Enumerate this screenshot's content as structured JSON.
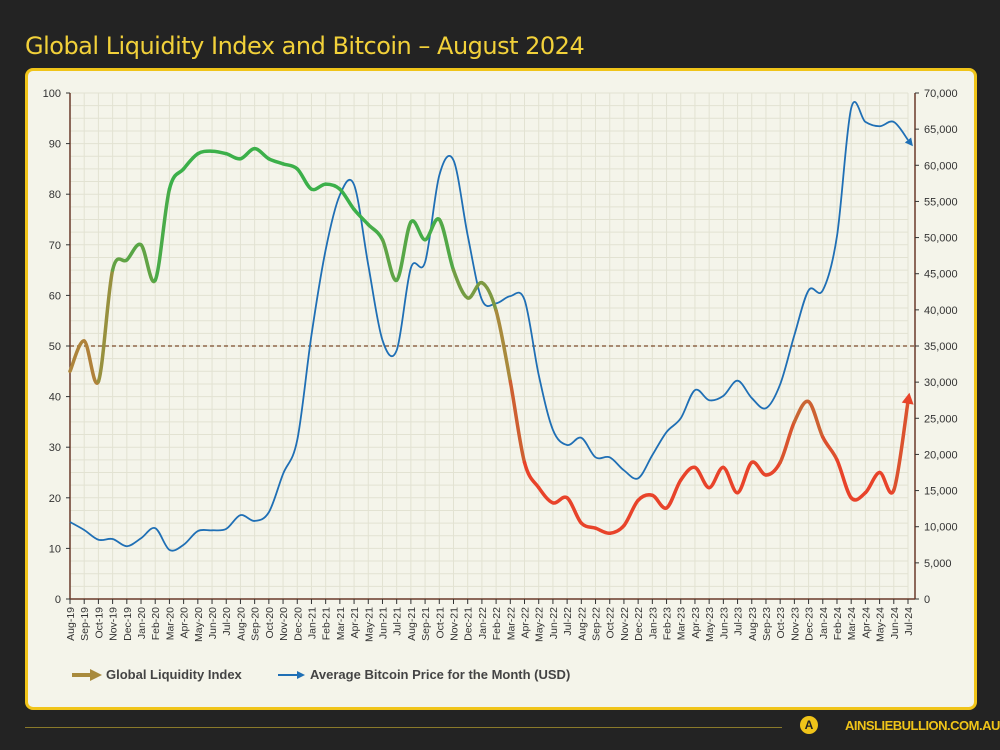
{
  "title": "Global Liquidity Index and Bitcoin – August 2024",
  "footer": {
    "site": "AINSLIEBULLION.COM.AU",
    "logo_letter": "A"
  },
  "chart_data": {
    "type": "line",
    "title": "Global Liquidity Index and Bitcoin – August 2024",
    "categories": [
      "Aug-19",
      "Sep-19",
      "Oct-19",
      "Nov-19",
      "Dec-19",
      "Jan-20",
      "Feb-20",
      "Mar-20",
      "Apr-20",
      "May-20",
      "Jun-20",
      "Jul-20",
      "Aug-20",
      "Sep-20",
      "Oct-20",
      "Nov-20",
      "Dec-20",
      "Jan-21",
      "Feb-21",
      "Mar-21",
      "Apr-21",
      "May-21",
      "Jun-21",
      "Jul-21",
      "Aug-21",
      "Sep-21",
      "Oct-21",
      "Nov-21",
      "Dec-21",
      "Jan-22",
      "Feb-22",
      "Mar-22",
      "Apr-22",
      "May-22",
      "Jun-22",
      "Jul-22",
      "Aug-22",
      "Sep-22",
      "Oct-22",
      "Nov-22",
      "Dec-22",
      "Jan-23",
      "Feb-23",
      "Mar-23",
      "Apr-23",
      "May-23",
      "Jun-23",
      "Jul-23",
      "Aug-23",
      "Sep-23",
      "Oct-23",
      "Nov-23",
      "Dec-23",
      "Jan-24",
      "Feb-24",
      "Mar-24",
      "Apr-24",
      "May-24",
      "Jun-24",
      "Jul-24"
    ],
    "series": [
      {
        "name": "Global Liquidity Index",
        "axis": "left",
        "color_high": "#3cb04a",
        "color_mid": "#a88a3c",
        "color_low": "#e8432a",
        "values": [
          45,
          51,
          43,
          65,
          67,
          70,
          63,
          81,
          85,
          88,
          88.5,
          88,
          87,
          89,
          87,
          86,
          85,
          81,
          82,
          81,
          77,
          74,
          71,
          63,
          74.5,
          71,
          75,
          65,
          59.5,
          62.5,
          57,
          43,
          27,
          22,
          19,
          20,
          15,
          14,
          13,
          14.5,
          19.5,
          20.5,
          18,
          23.5,
          26,
          22,
          26,
          21,
          27,
          24.5,
          27,
          35,
          39,
          32,
          27.5,
          20,
          21,
          25,
          21.5,
          39
        ]
      },
      {
        "name": "Average Bitcoin Price for the Month (USD)",
        "axis": "right",
        "color": "#1f6fb5",
        "values": [
          10650,
          9550,
          8200,
          8300,
          7300,
          8400,
          9800,
          6800,
          7500,
          9400,
          9500,
          9700,
          11600,
          10800,
          12000,
          17300,
          22000,
          36500,
          48300,
          55900,
          57300,
          46200,
          35800,
          34400,
          45800,
          46600,
          58600,
          60700,
          50300,
          41400,
          40900,
          41900,
          41400,
          31000,
          23400,
          21300,
          22300,
          19600,
          19600,
          17800,
          16700,
          19900,
          23100,
          25000,
          28900,
          27500,
          28100,
          30200,
          27800,
          26400,
          29700,
          36500,
          42700,
          42700,
          50200,
          67900,
          66000,
          65400,
          66000,
          63500
        ]
      }
    ],
    "y_left": {
      "range": [
        0,
        100
      ],
      "ticks": [
        0,
        10,
        20,
        30,
        40,
        50,
        60,
        70,
        80,
        90,
        100
      ]
    },
    "y_right": {
      "range": [
        0,
        70000
      ],
      "ticks": [
        "0",
        "5,000",
        "10,000",
        "15,000",
        "20,000",
        "25,000",
        "30,000",
        "35,000",
        "40,000",
        "45,000",
        "50,000",
        "55,000",
        "60,000",
        "65,000",
        "70,000"
      ]
    },
    "reference_line": {
      "axis": "left",
      "value": 50,
      "style": "dashed",
      "color": "#7a4a2a"
    },
    "grid": true,
    "legend_position": "bottom-left"
  }
}
